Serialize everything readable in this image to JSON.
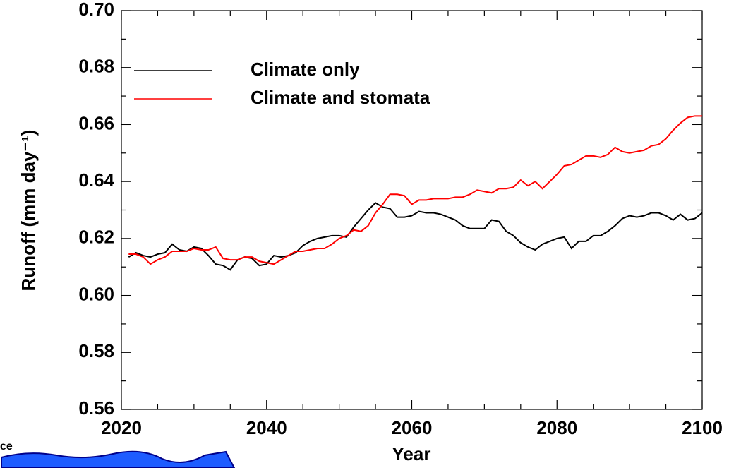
{
  "chart_data": {
    "type": "line",
    "x_label": "Year",
    "y_label": "Runoff (mm day⁻¹)",
    "xlim": [
      2020,
      2100
    ],
    "xticks": [
      2020,
      2040,
      2060,
      2080,
      2100
    ],
    "ylim": [
      0.56,
      0.7
    ],
    "yticks": [
      {
        "value": 0.56,
        "label": "0.56"
      },
      {
        "value": 0.58,
        "label": "0.58"
      },
      {
        "value": 0.6,
        "label": "0.60"
      },
      {
        "value": 0.62,
        "label": "0.62"
      },
      {
        "value": 0.64,
        "label": "0.64"
      },
      {
        "value": 0.66,
        "label": "0.66"
      },
      {
        "value": 0.68,
        "label": "0.68"
      },
      {
        "value": 0.7,
        "label": "0.70"
      }
    ],
    "legend": "upper left",
    "x": [
      2021,
      2022,
      2023,
      2024,
      2025,
      2026,
      2027,
      2028,
      2029,
      2030,
      2031,
      2032,
      2033,
      2034,
      2035,
      2036,
      2037,
      2038,
      2039,
      2040,
      2041,
      2042,
      2043,
      2044,
      2045,
      2046,
      2047,
      2048,
      2049,
      2050,
      2051,
      2052,
      2053,
      2054,
      2055,
      2056,
      2057,
      2058,
      2059,
      2060,
      2061,
      2062,
      2063,
      2064,
      2065,
      2066,
      2067,
      2068,
      2069,
      2070,
      2071,
      2072,
      2073,
      2074,
      2075,
      2076,
      2077,
      2078,
      2079,
      2080,
      2081,
      2082,
      2083,
      2084,
      2085,
      2086,
      2087,
      2088,
      2089,
      2090,
      2091,
      2092,
      2093,
      2094,
      2095,
      2096,
      2097,
      2098,
      2099,
      2100
    ],
    "series": [
      {
        "name": "Climate only",
        "color": "#000000",
        "values": [
          0.6135,
          0.615,
          0.614,
          0.6135,
          0.6145,
          0.615,
          0.618,
          0.616,
          0.6155,
          0.617,
          0.6165,
          0.614,
          0.611,
          0.6105,
          0.609,
          0.6125,
          0.6135,
          0.613,
          0.6105,
          0.611,
          0.614,
          0.6135,
          0.614,
          0.615,
          0.6175,
          0.619,
          0.62,
          0.6205,
          0.621,
          0.621,
          0.6205,
          0.624,
          0.627,
          0.63,
          0.6325,
          0.631,
          0.6305,
          0.6275,
          0.6275,
          0.628,
          0.6295,
          0.629,
          0.629,
          0.6285,
          0.6275,
          0.6265,
          0.6245,
          0.6235,
          0.6235,
          0.6235,
          0.6265,
          0.626,
          0.6225,
          0.621,
          0.6185,
          0.617,
          0.616,
          0.618,
          0.619,
          0.62,
          0.6205,
          0.6165,
          0.619,
          0.619,
          0.621,
          0.621,
          0.6225,
          0.6245,
          0.627,
          0.628,
          0.6275,
          0.628,
          0.629,
          0.629,
          0.628,
          0.6265,
          0.6285,
          0.6265,
          0.627,
          0.629
        ]
      },
      {
        "name": "Climate and stomata",
        "color": "#ff0000",
        "values": [
          0.6145,
          0.6145,
          0.6135,
          0.611,
          0.6125,
          0.6135,
          0.6155,
          0.6155,
          0.6155,
          0.6165,
          0.616,
          0.616,
          0.617,
          0.613,
          0.6125,
          0.6125,
          0.6135,
          0.6135,
          0.612,
          0.6115,
          0.611,
          0.6125,
          0.614,
          0.6155,
          0.6155,
          0.616,
          0.6165,
          0.6165,
          0.618,
          0.62,
          0.621,
          0.623,
          0.6225,
          0.6245,
          0.629,
          0.632,
          0.6355,
          0.6355,
          0.635,
          0.632,
          0.6335,
          0.6335,
          0.634,
          0.634,
          0.634,
          0.6345,
          0.6345,
          0.6355,
          0.637,
          0.6365,
          0.636,
          0.6375,
          0.6375,
          0.638,
          0.6405,
          0.6385,
          0.64,
          0.6375,
          0.64,
          0.6425,
          0.6455,
          0.646,
          0.6475,
          0.649,
          0.649,
          0.6485,
          0.6495,
          0.652,
          0.6505,
          0.65,
          0.6505,
          0.651,
          0.6525,
          0.653,
          0.655,
          0.658,
          0.6605,
          0.6625,
          0.663,
          0.663
        ]
      }
    ]
  },
  "logo": {
    "text": "ce"
  }
}
